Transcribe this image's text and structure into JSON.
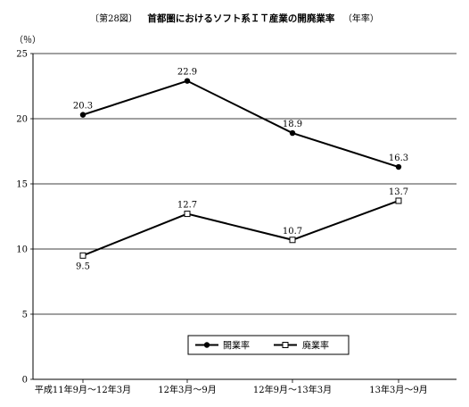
{
  "header": {
    "figure_no": "〔第28図〕",
    "title": "首都圏におけるソフト系ＩＴ産業の開廃業率",
    "note": "（年率）"
  },
  "chart_data": {
    "type": "line",
    "title": "首都圏におけるソフト系ＩＴ産業の開廃業率",
    "ylabel": "（％）",
    "xlabel": "",
    "categories": [
      "平成11年9月～12年3月",
      "12年3月～9月",
      "12年9月～13年3月",
      "13年3月～9月"
    ],
    "ylim": [
      0,
      25
    ],
    "yticks": [
      0,
      5,
      10,
      15,
      20,
      25
    ],
    "grid": true,
    "legend": "bottom-right",
    "series": [
      {
        "name": "開業率",
        "values": [
          20.3,
          22.9,
          18.9,
          16.3
        ],
        "marker": "filled-circle",
        "color": "#000000"
      },
      {
        "name": "廃業率",
        "values": [
          9.5,
          12.7,
          10.7,
          13.7
        ],
        "marker": "hollow-square",
        "color": "#000000"
      }
    ]
  }
}
